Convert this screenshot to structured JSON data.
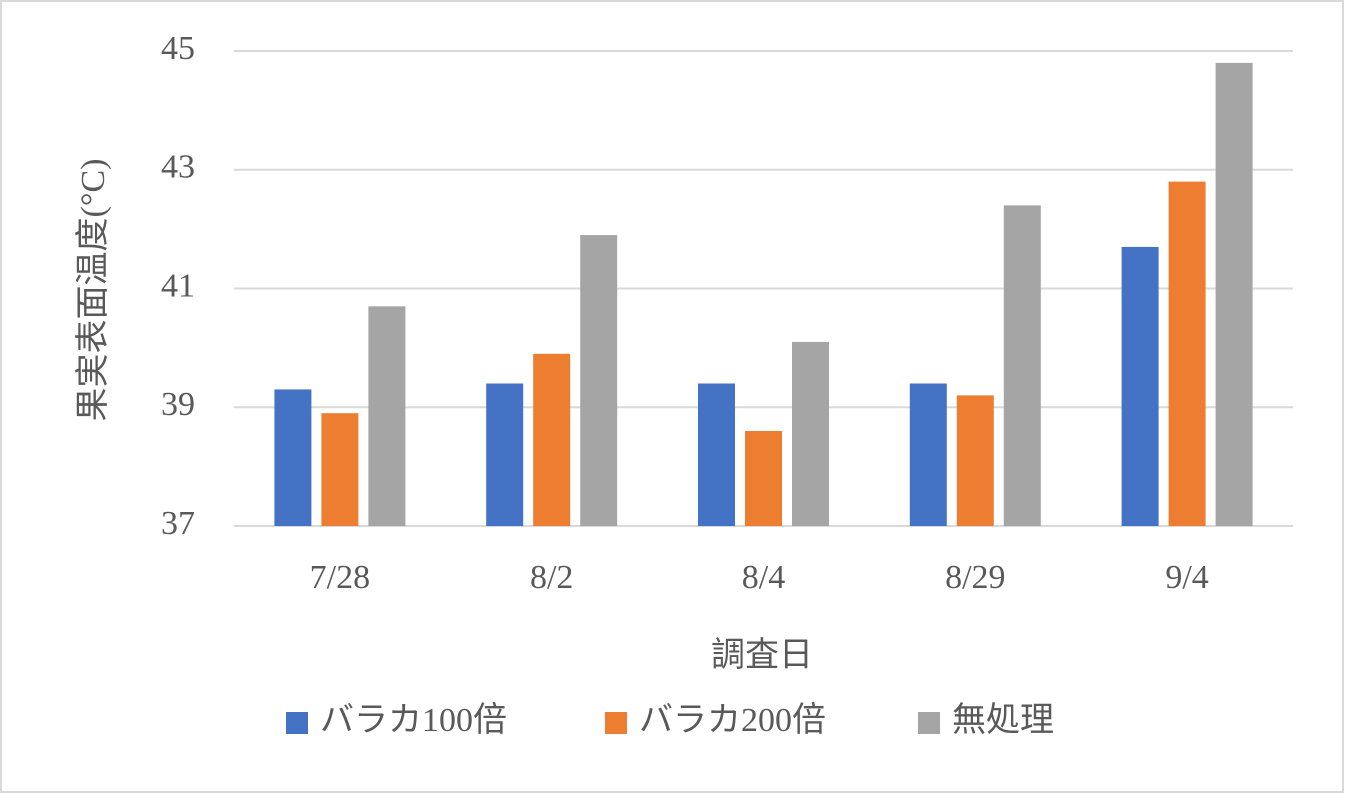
{
  "chart_data": {
    "type": "bar",
    "x_label": "調査日",
    "y_label": "果実表面温度(°C)",
    "categories": [
      "7/28",
      "8/2",
      "8/4",
      "8/29",
      "9/4"
    ],
    "series": [
      {
        "name": "バラカ100倍",
        "color": "#4472c4",
        "values": [
          39.3,
          39.4,
          39.4,
          39.4,
          41.7
        ]
      },
      {
        "name": "バラカ200倍",
        "color": "#ed7d31",
        "values": [
          38.9,
          39.9,
          38.6,
          39.2,
          42.8
        ]
      },
      {
        "name": "無処理",
        "color": "#a5a5a5",
        "values": [
          40.7,
          41.9,
          40.1,
          42.4,
          44.8
        ]
      }
    ],
    "ylim": [
      37,
      45
    ],
    "yticks": [
      37,
      39,
      41,
      43,
      45
    ],
    "grid": true,
    "legend": "bottom"
  }
}
